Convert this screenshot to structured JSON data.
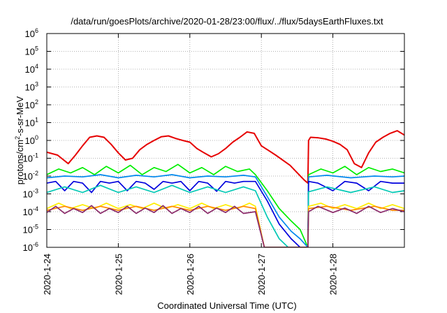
{
  "chart_data": {
    "type": "line",
    "title": "/data/run/goesPlots/archive/2020-01-28/23:00/flux/../flux/5daysEarthFluxes.txt",
    "xlabel": "Coordinated Universal Time (UTC)",
    "ylabel": {
      "base": "protons/cm",
      "sup": "2",
      "rest": "-s-sr-MeV"
    },
    "x_range": [
      "2020-01-24T00:00",
      "2020-01-29T00:00"
    ],
    "ylim": [
      1e-06,
      1000000.0
    ],
    "yscale": "log",
    "grid": true,
    "x_ticks": [
      "2020-1-24",
      "2020-1-25",
      "2020-1-26",
      "2020-1-27",
      "2020-1-28"
    ],
    "y_ticks": [
      {
        "base": "10",
        "exp": "-6"
      },
      {
        "base": "10",
        "exp": "-5"
      },
      {
        "base": "10",
        "exp": "-4"
      },
      {
        "base": "10",
        "exp": "-3"
      },
      {
        "base": "10",
        "exp": "-2"
      },
      {
        "base": "10",
        "exp": "-1"
      },
      {
        "base": "10",
        "exp": "0"
      },
      {
        "base": "10",
        "exp": "1"
      },
      {
        "base": "10",
        "exp": "2"
      },
      {
        "base": "10",
        "exp": "3"
      },
      {
        "base": "10",
        "exp": "4"
      },
      {
        "base": "10",
        "exp": "5"
      },
      {
        "base": "10",
        "exp": "6"
      }
    ],
    "series": [
      {
        "color": "#e60000",
        "x": [
          "2020-01-24T00:00",
          "2020-01-24T03:36",
          "2020-01-24T07:12",
          "2020-01-24T09:36",
          "2020-01-24T12:00",
          "2020-01-24T14:24",
          "2020-01-24T16:48",
          "2020-01-24T19:12",
          "2020-01-24T21:36",
          "2020-01-25T00:00",
          "2020-01-25T02:24",
          "2020-01-25T04:48",
          "2020-01-25T07:12",
          "2020-01-25T09:36",
          "2020-01-25T12:00",
          "2020-01-25T14:24",
          "2020-01-25T16:48",
          "2020-01-25T19:12",
          "2020-01-25T21:36",
          "2020-01-26T00:00",
          "2020-01-26T02:24",
          "2020-01-26T04:48",
          "2020-01-26T07:12",
          "2020-01-26T09:36",
          "2020-01-26T12:00",
          "2020-01-26T14:24",
          "2020-01-26T16:48",
          "2020-01-26T19:12",
          "2020-01-26T21:36",
          "2020-01-27T00:00",
          "2020-01-27T04:48",
          "2020-01-27T09:36",
          "2020-01-27T14:24",
          "2020-01-27T15:36",
          "2020-01-27T15:50",
          "2020-01-27T16:30",
          "2020-01-27T19:12",
          "2020-01-27T21:36",
          "2020-01-28T00:00",
          "2020-01-28T02:24",
          "2020-01-28T04:48",
          "2020-01-28T07:12",
          "2020-01-28T09:36",
          "2020-01-28T12:00",
          "2020-01-28T14:24",
          "2020-01-28T16:48",
          "2020-01-28T19:12",
          "2020-01-28T21:36",
          "2020-01-29T00:00"
        ],
        "values": [
          0.22,
          0.15,
          0.05,
          0.15,
          0.5,
          1.5,
          1.8,
          1.5,
          0.6,
          0.2,
          0.08,
          0.1,
          0.3,
          0.6,
          1.0,
          1.6,
          1.8,
          1.3,
          1.0,
          0.8,
          0.35,
          0.2,
          0.12,
          0.18,
          0.35,
          0.8,
          1.5,
          3.0,
          2.5,
          0.5,
          0.15,
          0.04,
          0.006,
          0.004,
          1.0,
          1.5,
          1.4,
          1.2,
          0.9,
          0.6,
          0.3,
          0.05,
          0.03,
          0.2,
          0.8,
          1.5,
          2.5,
          3.5,
          2.0
        ]
      },
      {
        "color": "#00ee00",
        "x": [
          "2020-01-24T00:00",
          "2020-01-24T04:00",
          "2020-01-24T08:00",
          "2020-01-24T12:00",
          "2020-01-24T16:00",
          "2020-01-24T20:00",
          "2020-01-25T00:00",
          "2020-01-25T04:00",
          "2020-01-25T08:00",
          "2020-01-25T12:00",
          "2020-01-25T16:00",
          "2020-01-25T20:00",
          "2020-01-26T00:00",
          "2020-01-26T04:00",
          "2020-01-26T08:00",
          "2020-01-26T12:00",
          "2020-01-26T16:00",
          "2020-01-26T20:00",
          "2020-01-26T22:00",
          "2020-01-27T02:00",
          "2020-01-27T06:00",
          "2020-01-27T10:00",
          "2020-01-27T13:00",
          "2020-01-27T15:36",
          "2020-01-27T15:50",
          "2020-01-27T20:00",
          "2020-01-28T00:00",
          "2020-01-28T04:00",
          "2020-01-28T08:00",
          "2020-01-28T12:00",
          "2020-01-28T16:00",
          "2020-01-28T20:00",
          "2020-01-29T00:00"
        ],
        "values": [
          0.012,
          0.025,
          0.015,
          0.03,
          0.012,
          0.035,
          0.015,
          0.04,
          0.012,
          0.03,
          0.018,
          0.045,
          0.015,
          0.03,
          0.012,
          0.035,
          0.018,
          0.025,
          0.012,
          0.0015,
          0.00015,
          3e-05,
          1e-05,
          1e-06,
          0.012,
          0.025,
          0.015,
          0.035,
          0.012,
          0.03,
          0.018,
          0.025,
          0.015
        ]
      },
      {
        "color": "#0088ee",
        "x": [
          "2020-01-24T00:00",
          "2020-01-24T06:00",
          "2020-01-24T12:00",
          "2020-01-24T18:00",
          "2020-01-25T00:00",
          "2020-01-25T06:00",
          "2020-01-25T12:00",
          "2020-01-25T18:00",
          "2020-01-26T00:00",
          "2020-01-26T06:00",
          "2020-01-26T12:00",
          "2020-01-26T18:00",
          "2020-01-26T22:00",
          "2020-01-27T02:00",
          "2020-01-27T06:00",
          "2020-01-27T10:00",
          "2020-01-27T13:00",
          "2020-01-27T15:36",
          "2020-01-27T15:50",
          "2020-01-27T22:00",
          "2020-01-28T06:00",
          "2020-01-28T14:00",
          "2020-01-28T20:00",
          "2020-01-29T00:00"
        ],
        "values": [
          0.008,
          0.01,
          0.009,
          0.012,
          0.008,
          0.011,
          0.009,
          0.012,
          0.008,
          0.01,
          0.009,
          0.011,
          0.009,
          0.0007,
          5e-05,
          8e-06,
          3e-06,
          1e-06,
          0.009,
          0.011,
          0.008,
          0.01,
          0.009,
          0.01
        ]
      },
      {
        "color": "#0000dd",
        "x": [
          "2020-01-24T00:00",
          "2020-01-24T03:00",
          "2020-01-24T06:00",
          "2020-01-24T09:00",
          "2020-01-24T12:00",
          "2020-01-24T15:00",
          "2020-01-24T18:00",
          "2020-01-24T21:00",
          "2020-01-25T00:00",
          "2020-01-25T03:00",
          "2020-01-25T06:00",
          "2020-01-25T09:00",
          "2020-01-25T12:00",
          "2020-01-25T15:00",
          "2020-01-25T18:00",
          "2020-01-25T21:00",
          "2020-01-26T00:00",
          "2020-01-26T03:00",
          "2020-01-26T06:00",
          "2020-01-26T09:00",
          "2020-01-26T12:00",
          "2020-01-26T15:00",
          "2020-01-26T18:00",
          "2020-01-26T22:00",
          "2020-01-27T02:00",
          "2020-01-27T06:00",
          "2020-01-27T10:00",
          "2020-01-27T13:00",
          "2020-01-27T15:36",
          "2020-01-27T15:50",
          "2020-01-27T19:00",
          "2020-01-28T00:00",
          "2020-01-28T04:00",
          "2020-01-28T08:00",
          "2020-01-28T12:00",
          "2020-01-28T16:00",
          "2020-01-28T20:00",
          "2020-01-29T00:00"
        ],
        "values": [
          0.004,
          0.005,
          0.0015,
          0.005,
          0.004,
          0.0012,
          0.005,
          0.004,
          0.005,
          0.0015,
          0.005,
          0.004,
          0.0018,
          0.005,
          0.004,
          0.005,
          0.0015,
          0.005,
          0.004,
          0.0014,
          0.005,
          0.004,
          0.005,
          0.005,
          0.0004,
          2e-05,
          3e-06,
          1e-06,
          1e-06,
          0.005,
          0.004,
          0.0015,
          0.005,
          0.004,
          0.0015,
          0.005,
          0.004,
          0.004
        ]
      },
      {
        "color": "#00c8b4",
        "x": [
          "2020-01-24T00:00",
          "2020-01-24T06:00",
          "2020-01-24T12:00",
          "2020-01-24T18:00",
          "2020-01-25T00:00",
          "2020-01-25T06:00",
          "2020-01-25T12:00",
          "2020-01-25T18:00",
          "2020-01-26T00:00",
          "2020-01-26T06:00",
          "2020-01-26T12:00",
          "2020-01-26T18:00",
          "2020-01-26T22:00",
          "2020-01-27T02:00",
          "2020-01-27T06:00",
          "2020-01-27T09:00",
          "2020-01-27T15:36",
          "2020-01-27T15:50",
          "2020-01-27T22:00",
          "2020-01-28T06:00",
          "2020-01-28T14:00",
          "2020-01-28T20:00",
          "2020-01-29T00:00"
        ],
        "values": [
          0.0012,
          0.0025,
          0.0012,
          0.003,
          0.0012,
          0.0025,
          0.0012,
          0.003,
          0.0012,
          0.0025,
          0.0012,
          0.0025,
          0.0015,
          5e-05,
          3e-06,
          1e-06,
          1e-06,
          0.0013,
          0.0025,
          0.0012,
          0.0025,
          0.0012,
          0.0015
        ]
      },
      {
        "color": "#ffee00",
        "x": [
          "2020-01-24T00:00",
          "2020-01-24T04:00",
          "2020-01-24T08:00",
          "2020-01-24T12:00",
          "2020-01-24T16:00",
          "2020-01-24T20:00",
          "2020-01-25T00:00",
          "2020-01-25T04:00",
          "2020-01-25T08:00",
          "2020-01-25T12:00",
          "2020-01-25T16:00",
          "2020-01-25T20:00",
          "2020-01-26T00:00",
          "2020-01-26T04:00",
          "2020-01-26T08:00",
          "2020-01-26T12:00",
          "2020-01-26T16:00",
          "2020-01-26T20:00",
          "2020-01-26T22:00",
          "2020-01-27T01:00",
          "2020-01-27T15:36",
          "2020-01-27T15:50",
          "2020-01-27T20:00",
          "2020-01-28T00:00",
          "2020-01-28T04:00",
          "2020-01-28T08:00",
          "2020-01-28T12:00",
          "2020-01-28T16:00",
          "2020-01-28T20:00",
          "2020-01-29T00:00"
        ],
        "values": [
          0.00015,
          0.0003,
          0.00015,
          0.00025,
          0.00015,
          0.0003,
          0.00015,
          0.00025,
          0.00015,
          0.0003,
          0.00015,
          0.00025,
          0.00015,
          0.0003,
          0.00015,
          0.00025,
          0.00015,
          0.0003,
          0.0002,
          1e-06,
          1e-06,
          0.0002,
          0.0003,
          0.00015,
          0.00025,
          0.00015,
          0.0003,
          0.00015,
          0.00025,
          0.00015
        ]
      },
      {
        "color": "#ff8800",
        "x": [
          "2020-01-24T00:00",
          "2020-01-24T06:00",
          "2020-01-24T12:00",
          "2020-01-24T18:00",
          "2020-01-25T00:00",
          "2020-01-25T06:00",
          "2020-01-25T12:00",
          "2020-01-25T18:00",
          "2020-01-26T00:00",
          "2020-01-26T06:00",
          "2020-01-26T12:00",
          "2020-01-26T18:00",
          "2020-01-26T22:00",
          "2020-01-27T01:00",
          "2020-01-27T15:36",
          "2020-01-27T15:50",
          "2020-01-27T22:00",
          "2020-01-28T06:00",
          "2020-01-28T14:00",
          "2020-01-28T20:00",
          "2020-01-29T00:00"
        ],
        "values": [
          0.00012,
          0.0002,
          0.00012,
          0.0002,
          0.00012,
          0.0002,
          0.00012,
          0.0002,
          0.00012,
          0.0002,
          0.00012,
          0.0002,
          0.00015,
          1e-06,
          1e-06,
          0.00015,
          0.0002,
          0.00012,
          0.0002,
          0.00012,
          0.00012
        ]
      },
      {
        "color": "#8b2a6a",
        "x": [
          "2020-01-24T00:00",
          "2020-01-24T03:00",
          "2020-01-24T06:00",
          "2020-01-24T09:00",
          "2020-01-24T12:00",
          "2020-01-24T15:00",
          "2020-01-24T18:00",
          "2020-01-24T21:00",
          "2020-01-25T00:00",
          "2020-01-25T03:00",
          "2020-01-25T06:00",
          "2020-01-25T09:00",
          "2020-01-25T12:00",
          "2020-01-25T15:00",
          "2020-01-25T18:00",
          "2020-01-25T21:00",
          "2020-01-26T00:00",
          "2020-01-26T03:00",
          "2020-01-26T06:00",
          "2020-01-26T09:00",
          "2020-01-26T12:00",
          "2020-01-26T15:00",
          "2020-01-26T18:00",
          "2020-01-26T22:00",
          "2020-01-27T01:00",
          "2020-01-27T15:36",
          "2020-01-27T15:50",
          "2020-01-27T19:00",
          "2020-01-28T00:00",
          "2020-01-28T04:00",
          "2020-01-28T08:00",
          "2020-01-28T12:00",
          "2020-01-28T16:00",
          "2020-01-28T20:00",
          "2020-01-29T00:00"
        ],
        "values": [
          9e-05,
          0.0002,
          8e-05,
          0.00015,
          9e-05,
          0.00022,
          8e-05,
          0.00015,
          9e-05,
          0.0002,
          8e-05,
          0.00016,
          9e-05,
          0.00022,
          8e-05,
          0.00015,
          9e-05,
          0.0002,
          8e-05,
          0.00016,
          9e-05,
          0.0002,
          8e-05,
          0.0001,
          1e-06,
          1e-06,
          0.0001,
          0.0002,
          9e-05,
          0.00016,
          8e-05,
          0.0002,
          9e-05,
          0.00015,
          0.0001
        ]
      }
    ]
  }
}
